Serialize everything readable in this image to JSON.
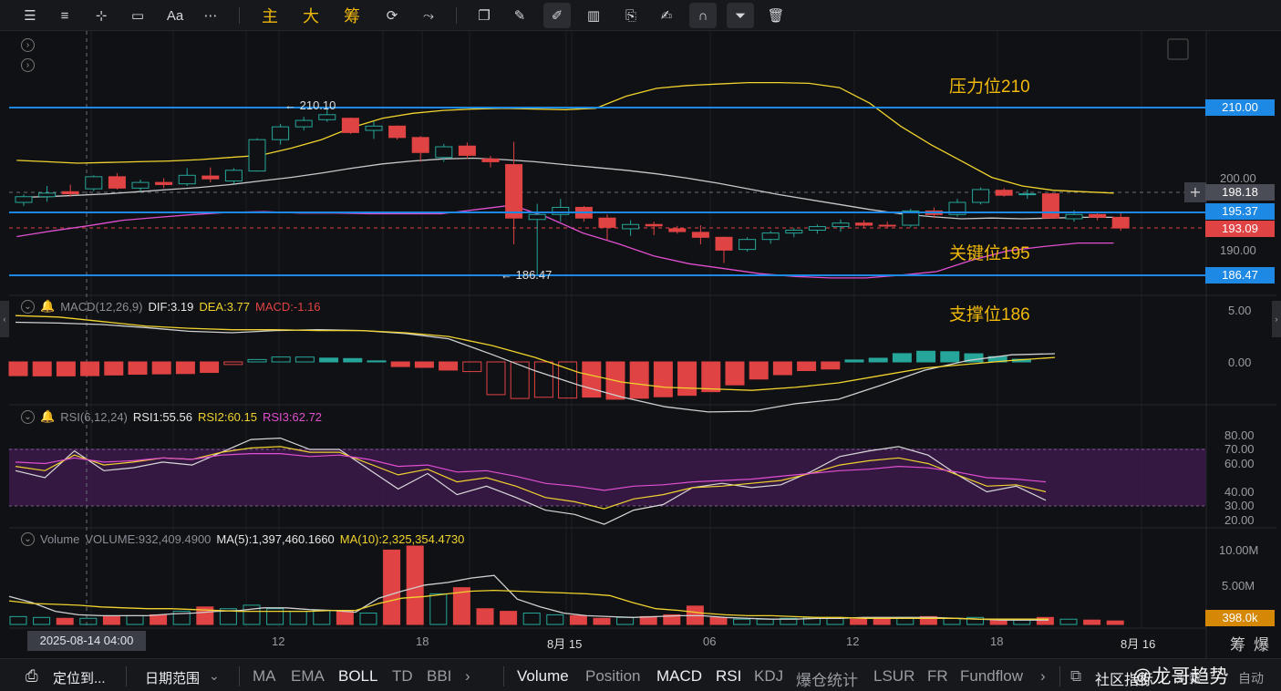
{
  "toolbar": {
    "text_size_label": "Aa",
    "indicator_chars": [
      "主",
      "大",
      "筹"
    ]
  },
  "annotations": {
    "resistance": "压力位210",
    "key": "关键位195",
    "support": "支撑位186"
  },
  "price_markers": {
    "high_label": "← 210.10",
    "low_label": "← 186.47"
  },
  "price_axis": {
    "ticks": [
      "200.00",
      "190.00"
    ],
    "tags": [
      {
        "value": "210.00",
        "color": "#1e88e5"
      },
      {
        "value": "198.18",
        "color": "#4a4d55"
      },
      {
        "value": "195.37",
        "color": "#1e88e5"
      },
      {
        "value": "193.09",
        "color": "#e04343"
      },
      {
        "value": "186.47",
        "color": "#1e88e5"
      }
    ]
  },
  "macd": {
    "name": "MACD(12,26,9)",
    "dif": "DIF:3.19",
    "dea": "DEA:3.77",
    "macd": "MACD:-1.16",
    "axis": [
      "5.00",
      "0.00"
    ]
  },
  "rsi": {
    "name": "RSI(6,12,24)",
    "rsi1": "RSI1:55.56",
    "rsi2": "RSI2:60.15",
    "rsi3": "RSI3:62.72",
    "axis": [
      "80.00",
      "70.00",
      "60.00",
      "40.00",
      "30.00",
      "20.00"
    ]
  },
  "volume": {
    "name": "Volume",
    "value": "VOLUME:932,409.4900",
    "ma5": "MA(5):1,397,460.1660",
    "ma10": "MA(10):2,325,354.4730",
    "axis": [
      "10.00M",
      "5.00M"
    ],
    "tag": "398.0k"
  },
  "time_axis": {
    "crosshair": "2025-08-14 04:00",
    "labels": [
      "12",
      "18",
      "8月 15",
      "06",
      "12",
      "18",
      "8月 16"
    ]
  },
  "corner": {
    "chip": "筹",
    "burst": "爆"
  },
  "bottom_bar": {
    "locate": "定位到...",
    "range": "日期范围",
    "main_indicators": [
      "MA",
      "EMA",
      "BOLL",
      "TD",
      "BBI"
    ],
    "sub_indicators": [
      "Volume",
      "Position",
      "MACD",
      "RSI",
      "KDJ",
      "爆仓统计",
      "LSUR",
      "FR",
      "Fundflow"
    ],
    "community": "社区指标",
    "log": "对数",
    "auto": "自动"
  },
  "watermark": "@龙哥趋势",
  "colors": {
    "up": "#26a69a",
    "down": "#e04343",
    "accent": "#f0b90b",
    "level": "#1e88e5"
  },
  "chart_data": {
    "type": "candlestick",
    "price_levels": {
      "resistance": 210.0,
      "key": 195.37,
      "support": 186.47,
      "last": 193.09,
      "crosshair": 198.18
    },
    "ohlc": [
      [
        196.7,
        197.8,
        196.2,
        197.5
      ],
      [
        197.5,
        199.0,
        196.8,
        198.0
      ],
      [
        198.2,
        199.2,
        197.5,
        197.9
      ],
      [
        198.6,
        200.5,
        198.3,
        200.3
      ],
      [
        200.3,
        200.8,
        198.5,
        198.7
      ],
      [
        198.7,
        199.9,
        198.2,
        199.5
      ],
      [
        199.5,
        200.1,
        198.7,
        199.2
      ],
      [
        199.3,
        201.5,
        199.0,
        200.5
      ],
      [
        200.4,
        201.6,
        199.5,
        200.0
      ],
      [
        199.7,
        201.5,
        199.3,
        201.2
      ],
      [
        201.1,
        205.7,
        201.0,
        205.5
      ],
      [
        205.5,
        207.7,
        204.8,
        207.3
      ],
      [
        207.3,
        208.7,
        206.8,
        208.2
      ],
      [
        208.3,
        210.1,
        208.0,
        209.0
      ],
      [
        208.5,
        208.6,
        206.3,
        206.5
      ],
      [
        206.8,
        208.1,
        205.6,
        207.4
      ],
      [
        207.4,
        207.5,
        205.5,
        205.8
      ],
      [
        205.8,
        206.0,
        202.4,
        203.7
      ],
      [
        203.0,
        204.9,
        202.4,
        204.5
      ],
      [
        204.6,
        205.1,
        202.8,
        203.3
      ],
      [
        202.8,
        203.2,
        201.6,
        202.4
      ],
      [
        202.0,
        205.2,
        190.8,
        194.5
      ],
      [
        194.3,
        196.5,
        186.5,
        195.0
      ],
      [
        195.0,
        197.2,
        194.0,
        196.0
      ],
      [
        196.0,
        196.2,
        194.0,
        194.5
      ],
      [
        194.5,
        195.0,
        191.4,
        193.2
      ],
      [
        193.0,
        194.2,
        192.0,
        193.6
      ],
      [
        193.6,
        194.0,
        192.1,
        193.4
      ],
      [
        193.0,
        193.4,
        192.3,
        192.6
      ],
      [
        192.5,
        193.5,
        190.8,
        191.8
      ],
      [
        191.8,
        191.9,
        188.2,
        190.0
      ],
      [
        190.1,
        191.8,
        189.8,
        191.5
      ],
      [
        191.5,
        192.7,
        190.9,
        192.4
      ],
      [
        192.4,
        193.1,
        191.8,
        192.8
      ],
      [
        192.8,
        193.6,
        192.3,
        193.3
      ],
      [
        193.3,
        194.3,
        192.6,
        193.8
      ],
      [
        193.8,
        194.2,
        193.2,
        193.5
      ],
      [
        193.5,
        194.0,
        193.1,
        193.4
      ],
      [
        193.5,
        195.8,
        193.2,
        195.5
      ],
      [
        195.5,
        196.0,
        194.5,
        195.0
      ],
      [
        195.0,
        197.2,
        194.7,
        196.7
      ],
      [
        196.7,
        198.8,
        196.4,
        198.5
      ],
      [
        198.4,
        198.7,
        197.5,
        197.7
      ],
      [
        197.8,
        198.5,
        197.2,
        197.9
      ],
      [
        197.9,
        198.0,
        194.4,
        194.5
      ],
      [
        194.4,
        195.6,
        194.0,
        195.0
      ],
      [
        195.0,
        195.3,
        194.2,
        194.6
      ],
      [
        194.6,
        195.2,
        192.7,
        193.1
      ]
    ],
    "boll_upper": [
      202.6,
      202.4,
      202.2,
      202.3,
      202.4,
      202.5,
      202.7,
      203.0,
      203.3,
      204.3,
      205.5,
      207.2,
      208.5,
      209.2,
      209.6,
      209.8,
      209.9,
      209.8,
      209.7,
      209.9,
      211.6,
      212.7,
      213.1,
      213.3,
      213.5,
      213.5,
      213.4,
      212.8,
      210.6,
      207.4,
      204.8,
      202.5,
      200.2,
      199.0,
      198.4,
      198.2,
      198.0
    ],
    "boll_mid": [
      197.4,
      197.5,
      197.7,
      197.9,
      198.2,
      198.5,
      198.8,
      199.2,
      199.7,
      200.2,
      200.8,
      201.5,
      202.1,
      202.5,
      202.8,
      202.9,
      202.7,
      202.4,
      202.0,
      201.6,
      201.2,
      200.7,
      200.1,
      199.4,
      198.6,
      197.8,
      197.1,
      196.4,
      195.7,
      195.1,
      194.7,
      194.4,
      194.5,
      194.4,
      194.5,
      194.6,
      194.6
    ],
    "boll_lower": [
      191.9,
      192.7,
      193.4,
      194.2,
      194.6,
      195.0,
      195.3,
      195.4,
      195.2,
      195.2,
      195.1,
      195.1,
      195.1,
      195.7,
      196.3,
      194.6,
      192.4,
      190.9,
      189.2,
      188.1,
      187.4,
      186.7,
      186.3,
      186.1,
      186.1,
      186.5,
      187.0,
      188.6,
      189.9,
      190.5,
      191.0,
      191.0
    ],
    "macd_hist": [
      -1.84,
      -1.87,
      -1.87,
      -1.84,
      -1.75,
      -1.65,
      -1.6,
      -1.56,
      -1.41,
      -0.35,
      0.32,
      0.66,
      0.65,
      0.51,
      0.45,
      0.14,
      -0.62,
      -0.73,
      -1.09,
      -1.29,
      -4.38,
      -4.89,
      -4.73,
      -4.84,
      -4.71,
      -4.99,
      -4.86,
      -4.66,
      -4.47,
      -3.98,
      -3.07,
      -2.29,
      -1.71,
      -1.16,
      -0.95,
      0.26,
      0.49,
      1.11,
      1.43,
      1.37,
      1.09,
      0.71,
      0.36
    ],
    "dif": [
      5.3,
      5.2,
      5.0,
      4.6,
      4.1,
      3.9,
      4.2,
      4.3,
      4.2,
      3.8,
      3.1,
      1.0,
      -1.2,
      -3.1,
      -4.7,
      -6.0,
      -6.7,
      -6.6,
      -5.6,
      -5.0,
      -3.1,
      -1.1,
      0.2,
      0.95,
      1.1
    ],
    "dea": [
      6.2,
      6.0,
      5.4,
      4.8,
      4.5,
      4.3,
      4.3,
      4.2,
      4.2,
      3.9,
      3.4,
      2.2,
      0.6,
      -1.4,
      -2.7,
      -3.4,
      -3.6,
      -3.8,
      -3.4,
      -2.8,
      -1.8,
      -0.8,
      -0.3,
      0.2,
      0.6
    ],
    "rsi1": [
      55,
      50,
      69,
      55,
      57,
      61,
      59,
      68,
      77,
      78,
      70,
      70,
      56,
      42,
      53,
      38,
      44,
      36,
      27,
      24,
      17,
      27,
      31,
      43,
      46,
      43,
      45,
      54,
      65,
      69,
      72,
      66,
      52,
      40,
      44,
      34
    ],
    "rsi2": [
      58,
      55,
      66,
      59,
      61,
      64,
      63,
      68,
      71,
      72,
      68,
      68,
      60,
      52,
      56,
      47,
      50,
      44,
      36,
      33,
      28,
      35,
      38,
      43,
      44,
      46,
      48,
      53,
      59,
      62,
      64,
      60,
      52,
      44,
      45,
      40
    ],
    "rsi3": [
      61,
      60,
      64,
      61,
      62,
      64,
      63,
      66,
      67,
      67,
      65,
      66,
      63,
      58,
      59,
      54,
      55,
      51,
      46,
      44,
      41,
      44,
      45,
      47,
      48,
      49,
      51,
      53,
      55,
      56,
      58,
      57,
      54,
      50,
      49,
      47
    ],
    "volume_m": [
      0.9,
      0.8,
      0.7,
      0.7,
      0.9,
      1.0,
      1.1,
      1.5,
      2.0,
      1.8,
      2.2,
      1.8,
      1.5,
      1.6,
      1.5,
      1.3,
      8.5,
      9.0,
      3.5,
      4.2,
      1.8,
      1.5,
      1.3,
      1.1,
      1.0,
      0.7,
      0.8,
      0.9,
      1.1,
      2.1,
      0.8,
      0.6,
      0.6,
      0.7,
      0.8,
      0.7,
      0.6,
      0.7,
      0.8,
      0.9,
      0.7,
      0.8,
      0.6,
      0.5,
      0.8,
      0.6,
      0.5,
      0.4
    ],
    "volume_ma5_m": [
      3.2,
      2.5,
      1.5,
      1.1,
      1.0,
      1.0,
      1.0,
      1.2,
      1.3,
      1.5,
      1.6,
      1.9,
      1.9,
      1.7,
      1.6,
      1.4,
      3.0,
      3.8,
      4.5,
      4.8,
      5.3,
      5.6,
      2.9,
      2.0,
      1.3,
      1.0,
      0.9,
      0.8,
      0.9,
      1.0,
      1.0,
      0.8,
      0.7,
      0.6,
      0.6,
      0.7,
      0.7,
      0.8,
      0.8,
      0.8,
      0.8,
      0.7,
      0.6,
      0.5,
      0.5,
      0.5
    ],
    "volume_ma10_m": [
      2.7,
      2.4,
      2.3,
      2.2,
      2.0,
      1.9,
      1.8,
      1.8,
      1.7,
      1.6,
      1.5,
      1.5,
      1.5,
      1.5,
      1.6,
      1.6,
      2.4,
      3.0,
      3.2,
      3.5,
      3.8,
      3.9,
      3.8,
      3.7,
      3.6,
      3.5,
      3.3,
      2.5,
      1.8,
      1.6,
      1.3,
      1.1,
      1.0,
      1.0,
      0.9,
      0.8,
      0.8,
      0.7,
      0.7,
      0.7,
      0.7,
      0.7,
      0.6,
      0.6,
      0.6,
      0.6
    ]
  }
}
